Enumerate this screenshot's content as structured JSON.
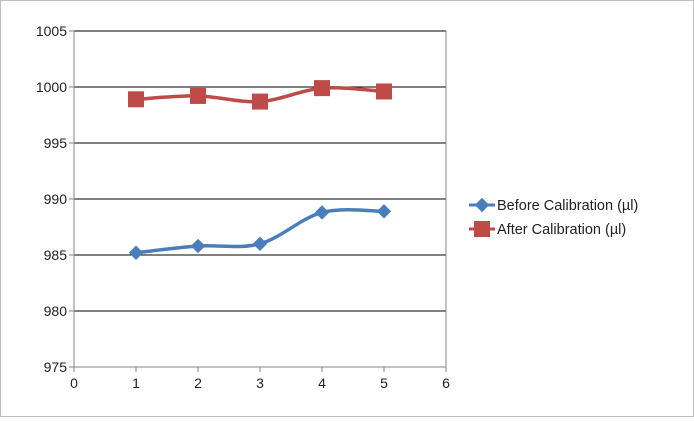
{
  "chart_data": {
    "type": "line",
    "title": "",
    "xlabel": "",
    "ylabel": "",
    "xlim": [
      0,
      6
    ],
    "ylim": [
      975,
      1005
    ],
    "x_ticks": [
      "0",
      "1",
      "2",
      "3",
      "4",
      "5",
      "6"
    ],
    "y_ticks": [
      "975",
      "980",
      "985",
      "990",
      "995",
      "1000",
      "1005"
    ],
    "grid": "horizontal",
    "legend_position": "right",
    "x": [
      1,
      2,
      3,
      4,
      5
    ],
    "series": [
      {
        "name": "Before Calibration (µl)",
        "values": [
          985.2,
          985.8,
          986.0,
          988.8,
          988.9
        ],
        "color": "#4a7ebb",
        "marker": "diamond"
      },
      {
        "name": "After Calibration (µl)",
        "values": [
          998.9,
          999.2,
          998.7,
          999.9,
          999.6
        ],
        "color": "#be4b48",
        "marker": "square"
      }
    ]
  }
}
